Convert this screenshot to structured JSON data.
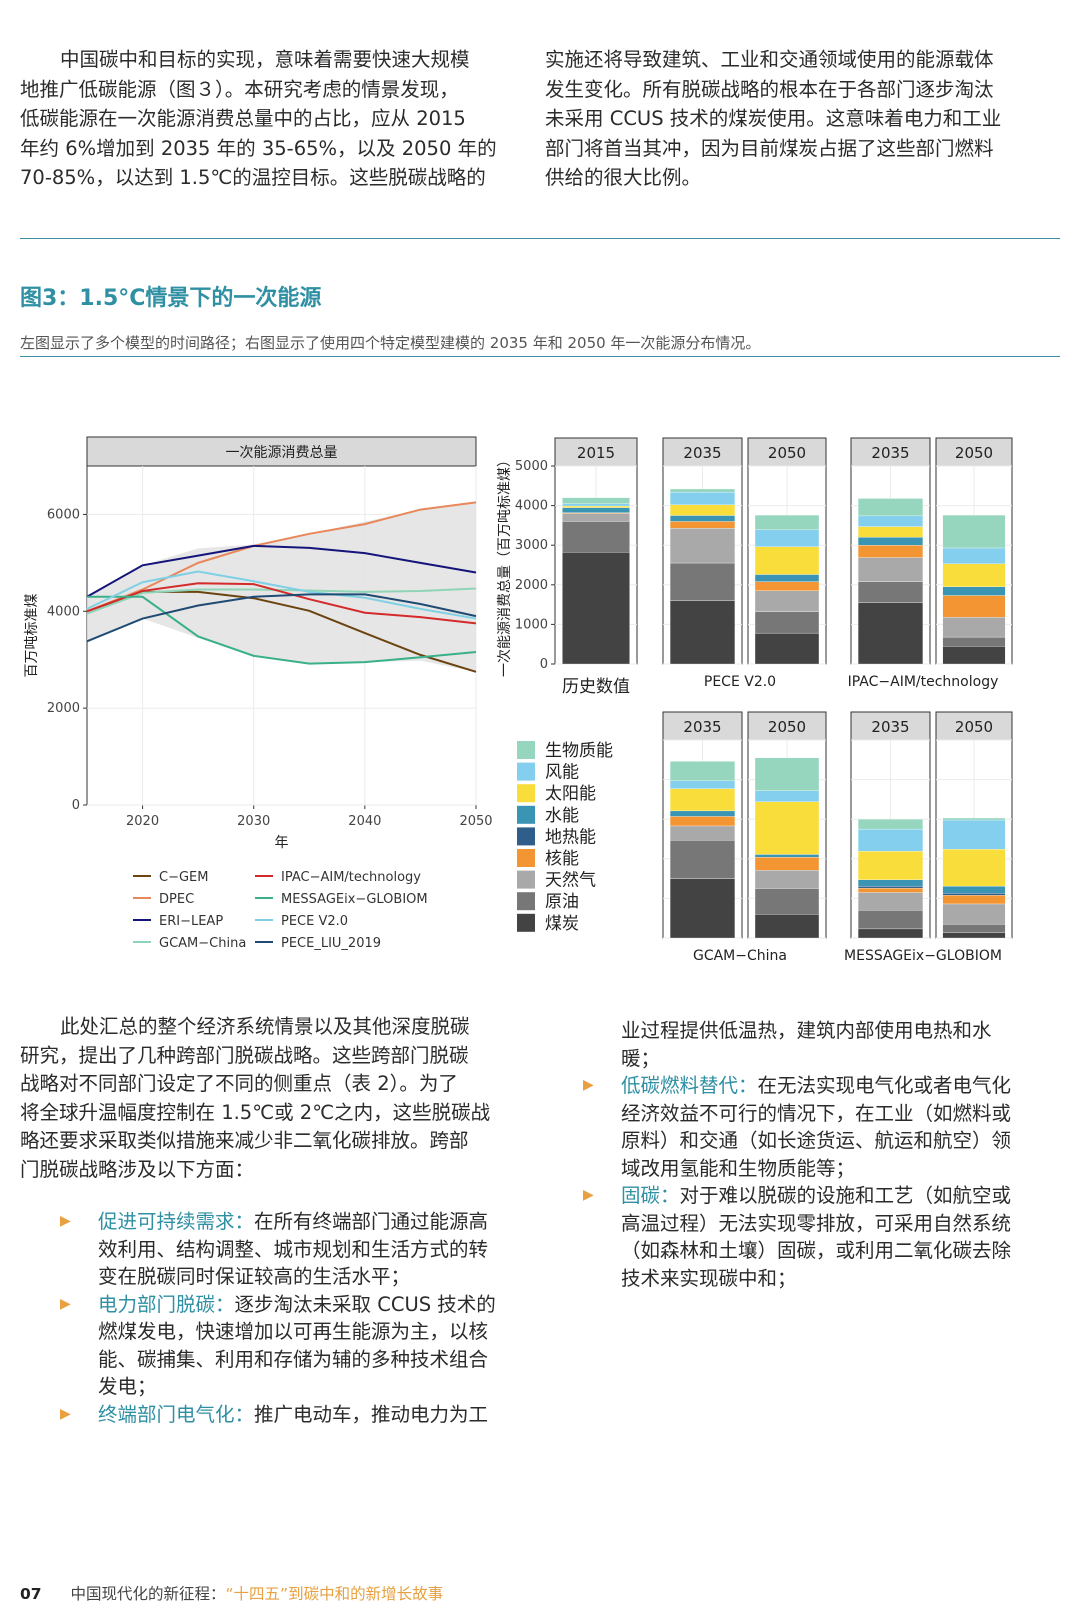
{
  "intro_left": [
    "中国碳中和目标的实现，意味着需要快速大规模",
    "地推广低碳能源（图３）。本研究考虑的情景发现，",
    "低碳能源在一次能源消费总量中的占比，应从 2015",
    "年约 6%增加到 2035 年的 35-65%，以及 2050 年的",
    "70-85%，以达到 1.5℃的温控目标。这些脱碳战略的"
  ],
  "intro_right": [
    "实施还将导致建筑、工业和交通领域使用的能源载体",
    "发生变化。所有脱碳战略的根本在于各部门逐步淘汰",
    "未采用 CCUS 技术的煤炭使用。这意味着电力和工业",
    "部门将首当其冲，因为目前煤炭占据了这些部门燃料",
    "供给的很大比例。"
  ],
  "figure": {
    "title": "图3：1.5°C情景下的一次能源",
    "caption": "左图显示了多个模型的时间路径；右图显示了使用四个特定模型建模的 2035 年和 2050 年一次能源分布情况。"
  },
  "chart_data": [
    {
      "type": "line",
      "title": "一次能源消费总量",
      "xlabel": "年",
      "ylabel": "百万吨标准煤",
      "xlim": [
        2015,
        2050
      ],
      "ylim": [
        0,
        7000
      ],
      "xticks": [
        2020,
        2030,
        2040,
        2050
      ],
      "yticks": [
        0,
        2000,
        4000,
        6000
      ],
      "band": {
        "name": "range",
        "x": [
          2015,
          2020,
          2025,
          2030,
          2035,
          2040,
          2045,
          2050
        ],
        "upper": [
          4300,
          4950,
          5300,
          5380,
          5600,
          5850,
          6100,
          6250
        ],
        "lower": [
          3380,
          3850,
          3450,
          3080,
          2920,
          2950,
          2980,
          2750
        ]
      },
      "series": [
        {
          "name": "C−GEM",
          "color": "#6b4410",
          "x": [
            2015,
            2020,
            2025,
            2030,
            2035,
            2040,
            2045,
            2050
          ],
          "values": [
            4000,
            4400,
            4400,
            4270,
            4010,
            3550,
            3100,
            2750
          ]
        },
        {
          "name": "DPEC",
          "color": "#e8875a",
          "x": [
            2015,
            2020,
            2025,
            2030,
            2035,
            2040,
            2045,
            2050
          ],
          "values": [
            4000,
            4450,
            5000,
            5350,
            5600,
            5800,
            6100,
            6250
          ]
        },
        {
          "name": "ERI−LEAP",
          "color": "#14147a",
          "x": [
            2015,
            2020,
            2025,
            2030,
            2035,
            2040,
            2045,
            2050
          ],
          "values": [
            4300,
            4950,
            5150,
            5350,
            5310,
            5200,
            5000,
            4800
          ]
        },
        {
          "name": "GCAM−China",
          "color": "#8fd4b6",
          "x": [
            2015,
            2020,
            2025,
            2030,
            2035,
            2040,
            2045,
            2050
          ],
          "values": [
            3950,
            4380,
            4450,
            4450,
            4430,
            4400,
            4420,
            4470
          ]
        },
        {
          "name": "IPAC−AIM/technology",
          "color": "#d42a2a",
          "x": [
            2015,
            2020,
            2025,
            2030,
            2035,
            2040,
            2045,
            2050
          ],
          "values": [
            4000,
            4420,
            4580,
            4560,
            4250,
            3970,
            3880,
            3750
          ]
        },
        {
          "name": "MESSAGEix−GLOBIOM",
          "color": "#39b08a",
          "x": [
            2015,
            2020,
            2025,
            2030,
            2035,
            2040,
            2045,
            2050
          ],
          "values": [
            4300,
            4300,
            3480,
            3080,
            2920,
            2950,
            3050,
            3160
          ]
        },
        {
          "name": "PECE V2.0",
          "color": "#7fd0e4",
          "x": [
            2015,
            2020,
            2025,
            2030,
            2035,
            2040,
            2045,
            2050
          ],
          "values": [
            4050,
            4600,
            4820,
            4620,
            4400,
            4280,
            4050,
            3850
          ]
        },
        {
          "name": "PECE_LIU_2019",
          "color": "#1f4a73",
          "x": [
            2015,
            2020,
            2025,
            2030,
            2035,
            2040,
            2045,
            2050
          ],
          "values": [
            3380,
            3850,
            4120,
            4300,
            4350,
            4350,
            4150,
            3900
          ]
        }
      ],
      "legend_position": "bottom"
    },
    {
      "type": "bar",
      "stacked": true,
      "ylabel": "一次能源消费总量（百万吨标准煤）",
      "ylim": [
        0,
        5000
      ],
      "yticks": [
        0,
        1000,
        2000,
        3000,
        4000,
        5000
      ],
      "components": [
        "煤炭",
        "原油",
        "天然气",
        "核能",
        "地热能",
        "水能",
        "太阳能",
        "风能",
        "生物质能"
      ],
      "component_colors": [
        "#434343",
        "#777777",
        "#a9a9a9",
        "#f29532",
        "#2f5e8a",
        "#3a95b5",
        "#f9dd3b",
        "#84cfee",
        "#96d6bf"
      ],
      "panels": [
        {
          "group": "历史数值",
          "year": "2015",
          "values": [
            2820,
            780,
            200,
            20,
            0,
            130,
            40,
            60,
            150
          ]
        },
        {
          "group": "PECE V2.0",
          "year": "2035",
          "values": [
            1600,
            950,
            880,
            170,
            0,
            150,
            270,
            320,
            80
          ]
        },
        {
          "group": "PECE V2.0",
          "year": "2050",
          "values": [
            780,
            540,
            530,
            230,
            0,
            180,
            700,
            430,
            370
          ]
        },
        {
          "group": "IPAC−AIM/technology",
          "year": "2035",
          "values": [
            1550,
            530,
            610,
            310,
            0,
            200,
            270,
            270,
            440
          ]
        },
        {
          "group": "IPAC−AIM/technology",
          "year": "2050",
          "values": [
            450,
            230,
            500,
            550,
            0,
            220,
            580,
            400,
            830
          ]
        },
        {
          "group": "GCAM−China",
          "year": "2035",
          "values": [
            1500,
            970,
            360,
            240,
            0,
            140,
            560,
            200,
            490
          ]
        },
        {
          "group": "GCAM−China",
          "year": "2050",
          "values": [
            600,
            650,
            460,
            330,
            0,
            70,
            1330,
            280,
            830
          ]
        },
        {
          "group": "MESSAGEix−GLOBIOM",
          "year": "2035",
          "values": [
            230,
            470,
            450,
            110,
            50,
            160,
            720,
            560,
            250
          ]
        },
        {
          "group": "MESSAGEix−GLOBIOM",
          "year": "2050",
          "values": [
            130,
            220,
            510,
            220,
            50,
            180,
            930,
            740,
            50
          ]
        }
      ],
      "legend_position": "left"
    }
  ],
  "body_left": [
    "此处汇总的整个经济系统情景以及其他深度脱碳",
    "研究，提出了几种跨部门脱碳战略。这些跨部门脱碳",
    "战略对不同部门设定了不同的侧重点（表 2）。为了",
    "将全球升温幅度控制在 1.5℃或 2℃之内，这些脱碳战",
    "略还要求采取类似措施来减少非二氧化碳排放。跨部",
    "门脱碳战略涉及以下方面："
  ],
  "bullets_left": [
    {
      "head": "促进可持续需求：",
      "lines": [
        "在所有终端部门通过能源高",
        "效利用、结构调整、城市规划和生活方式的转",
        "变在脱碳同时保证较高的生活水平；"
      ]
    },
    {
      "head": "电力部门脱碳：",
      "lines": [
        "逐步淘汰未采取 CCUS 技术的",
        "燃煤发电，快速增加以可再生能源为主，以核",
        "能、碳捕集、利用和存储为辅的多种技术组合",
        "发电；"
      ]
    },
    {
      "head": "终端部门电气化：",
      "lines": [
        "推广电动车，推动电力为工"
      ]
    }
  ],
  "right_cont": [
    "业过程提供低温热，建筑内部使用电热和水",
    "暖；"
  ],
  "bullets_right": [
    {
      "head": "低碳燃料替代：",
      "lines": [
        "在无法实现电气化或者电气化",
        "经济效益不可行的情况下，在工业（如燃料或",
        "原料）和交通（如长途货运、航运和航空）领",
        "域改用氢能和生物质能等；"
      ]
    },
    {
      "head": "固碳：",
      "lines": [
        "对于难以脱碳的设施和工艺（如航空或",
        "高温过程）无法实现零排放，可采用自然系统",
        "（如森林和土壤）固碳，或利用二氧化碳去除",
        "技术来实现碳中和；"
      ]
    }
  ],
  "footer": {
    "page": "07",
    "title": "中国现代化的新征程：",
    "subtitle": "“十四五”到碳中和的新增长故事"
  }
}
